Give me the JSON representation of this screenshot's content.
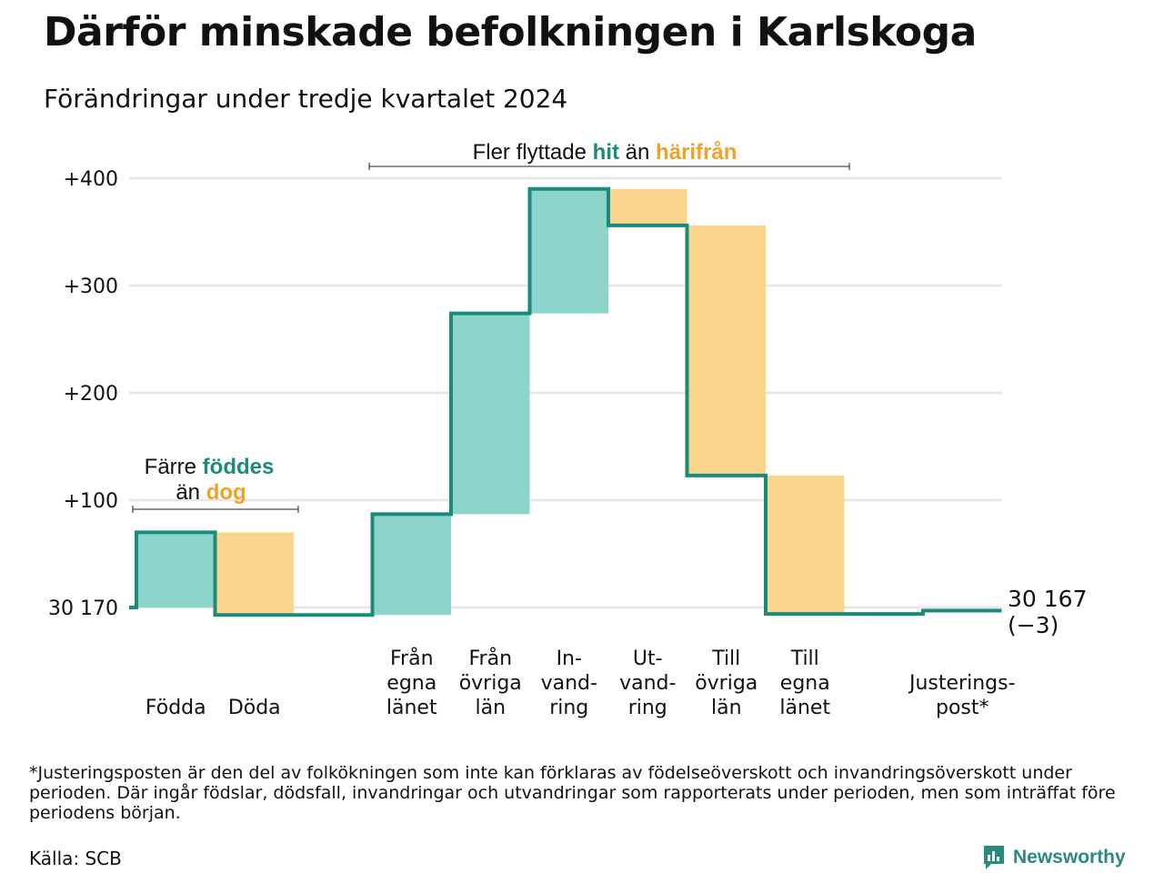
{
  "title": "Därför minskade befolkningen i Karlskoga",
  "subtitle": "Förändringar under tredje kvartalet 2024",
  "colors": {
    "increase": "#8dd5cb",
    "decrease": "#fad58c",
    "line": "#1a8a7d",
    "accent_orange": "#f0a12a",
    "grid": "#e6e6e6"
  },
  "chart_data": {
    "type": "waterfall",
    "baseline": {
      "label": "30 170",
      "value": 0
    },
    "end_label": "30 167",
    "end_change_label": "(−3)",
    "ylim": [
      -8,
      410
    ],
    "y_ticks": [
      {
        "value": 0,
        "label": "30 170"
      },
      {
        "value": 100,
        "label": "+100"
      },
      {
        "value": 200,
        "label": "+200"
      },
      {
        "value": 300,
        "label": "+300"
      },
      {
        "value": 400,
        "label": "+400"
      }
    ],
    "steps": [
      {
        "label_lines": [
          "Födda"
        ],
        "from": 0,
        "to": 70,
        "kind": "increase"
      },
      {
        "label_lines": [
          "Döda"
        ],
        "from": 70,
        "to": -7,
        "kind": "decrease"
      },
      {
        "label_lines": [
          "Från",
          "egna",
          "länet"
        ],
        "from": -7,
        "to": 87,
        "kind": "increase"
      },
      {
        "label_lines": [
          "Från",
          "övriga",
          "län"
        ],
        "from": 87,
        "to": 274,
        "kind": "increase"
      },
      {
        "label_lines": [
          "In-",
          "vand-",
          "ring"
        ],
        "from": 274,
        "to": 390,
        "kind": "increase"
      },
      {
        "label_lines": [
          "Ut-",
          "vand-",
          "ring"
        ],
        "from": 390,
        "to": 356,
        "kind": "decrease"
      },
      {
        "label_lines": [
          "Till",
          "övriga",
          "län"
        ],
        "from": 356,
        "to": 123,
        "kind": "decrease"
      },
      {
        "label_lines": [
          "Till",
          "egna",
          "länet"
        ],
        "from": 123,
        "to": -6,
        "kind": "decrease"
      },
      {
        "label_lines": [
          "Justerings-",
          "post*"
        ],
        "from": -6,
        "to": -3,
        "kind": "adjustment"
      }
    ],
    "annotations": {
      "births": {
        "line1_prefix": "Färre",
        "line1_highlight": "föddes",
        "line2_prefix": "än",
        "line2_highlight": "dog"
      },
      "migration": {
        "prefix": "Fler flyttade",
        "highlight1": "hit",
        "middle": "än",
        "highlight2": "härifrån"
      }
    }
  },
  "footnote": "*Justeringsposten är den del av folkökningen som inte kan förklaras av födelseöverskott och invandringsöverskott under perioden. Där ingår födslar, dödsfall, invandringar och utvandringar som rapporterats under perioden, men som inträffat före periodens början.",
  "source": "Källa: SCB",
  "brand": {
    "name": "Newsworthy",
    "icon": "newsworthy-logo-icon"
  }
}
